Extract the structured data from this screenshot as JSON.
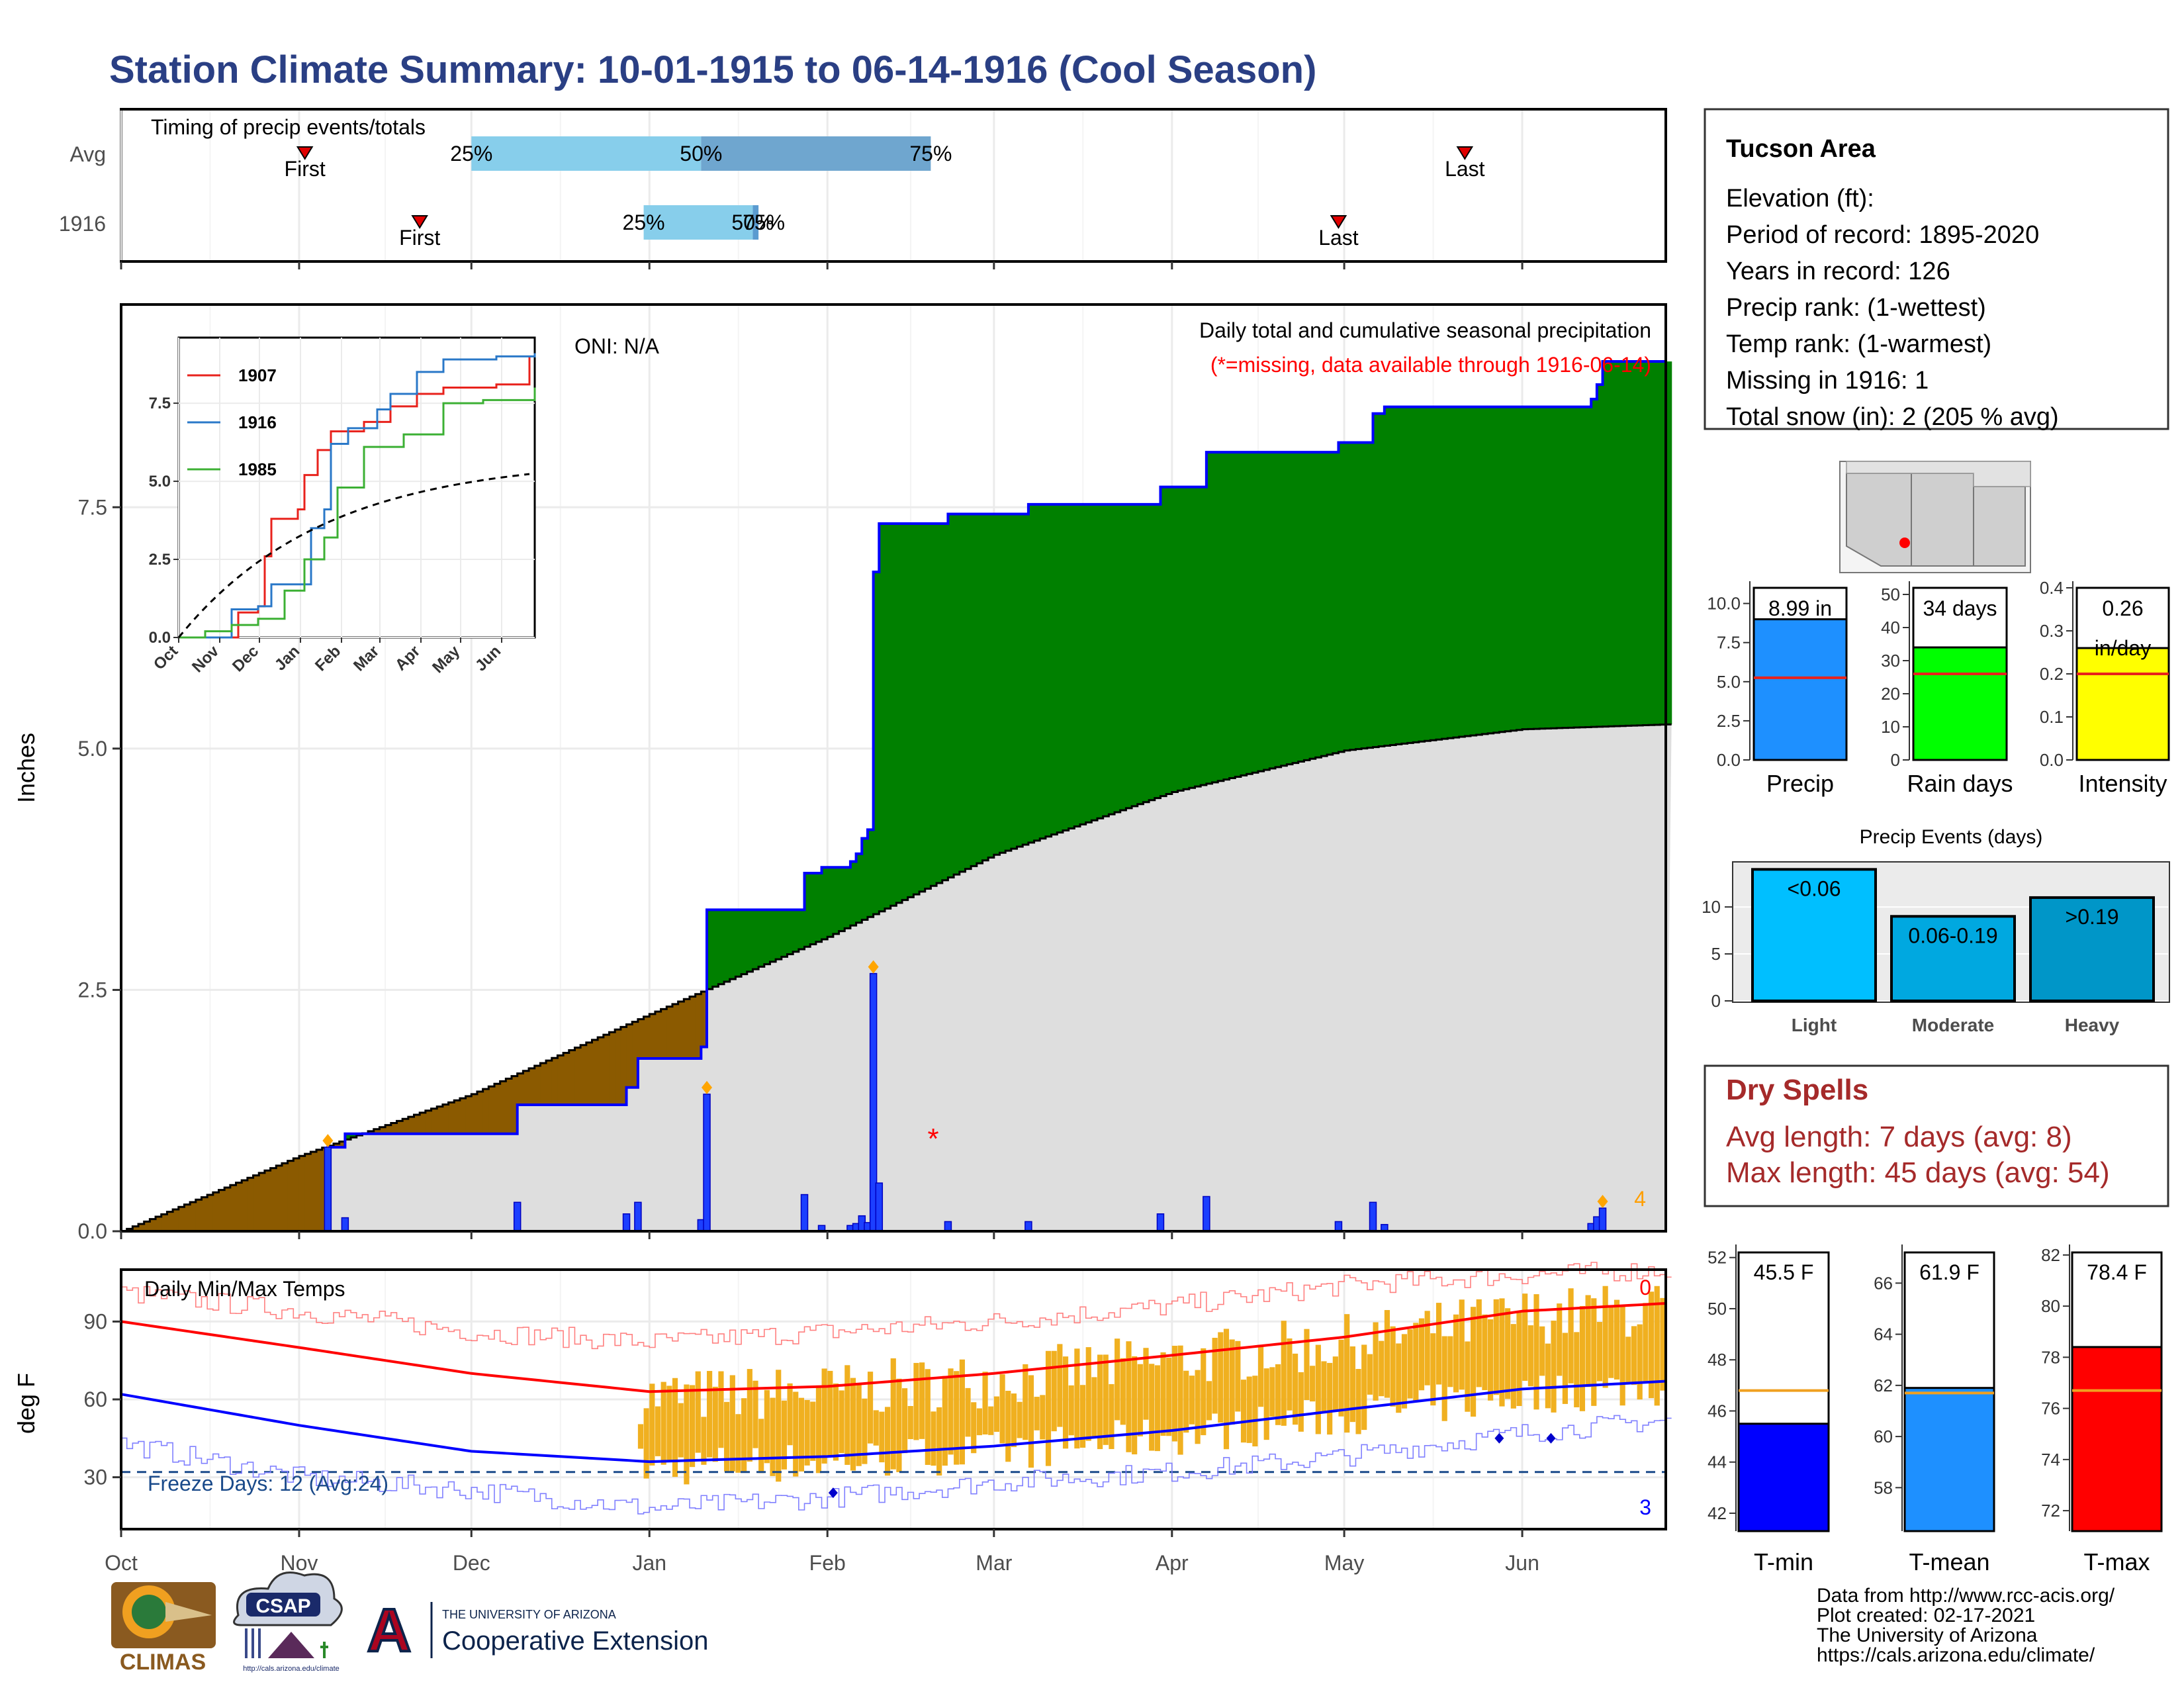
{
  "title": "Station Climate Summary: 10-01-1915 to 06-14-1916 (Cool Season)",
  "timing": {
    "label": "Timing of precip events/totals",
    "rows": [
      {
        "name": "Avg",
        "first": "1915-11-02",
        "p25": "1915-12-01",
        "p50": "1916-01-10",
        "p75": "1916-02-19",
        "last": "1916-05-22"
      },
      {
        "name": "1916",
        "first": "1915-11-22",
        "p25": "1915-12-31",
        "p50": "1916-01-19",
        "p75": "1916-01-20",
        "last": "1916-04-30"
      }
    ],
    "first_label": "First",
    "last_label": "Last",
    "pct_labels": [
      "25%",
      "50%",
      "75%"
    ],
    "row2_p75_label": "75%"
  },
  "months": [
    "Oct",
    "Nov",
    "Dec",
    "Jan",
    "Feb",
    "Mar",
    "Apr",
    "May",
    "Jun"
  ],
  "month_starts": [
    "1915-10-01",
    "1915-11-01",
    "1915-12-01",
    "1916-01-01",
    "1916-02-01",
    "1916-03-01",
    "1916-04-01",
    "1916-05-01",
    "1916-06-01"
  ],
  "precip": {
    "ylabel": "Inches",
    "y_ticks": [
      "0.0",
      "2.5",
      "5.0",
      "7.5"
    ],
    "ylim": [
      0,
      9.6
    ],
    "oni": "ONI: N/A",
    "header": "Daily total and cumulative seasonal precipitation",
    "missing_note": "(*=missing, data available through 1916-06-14)",
    "corner_count": "4",
    "colors": {
      "above": "#008000",
      "below": "#8b5a00",
      "normal": "#dedede",
      "cum_line": "#0000ff",
      "daily": "#1c3fff"
    }
  },
  "chart_data": [
    {
      "type": "area",
      "title": "Daily total and cumulative seasonal precipitation",
      "ylabel": "Inches",
      "ylim": [
        0,
        9.6
      ],
      "daily_events": [
        {
          "date": "1915-11-06",
          "value": 0.87,
          "marker": true
        },
        {
          "date": "1915-11-09",
          "value": 0.14
        },
        {
          "date": "1915-12-09",
          "value": 0.3
        },
        {
          "date": "1915-12-28",
          "value": 0.18
        },
        {
          "date": "1915-12-30",
          "value": 0.3
        },
        {
          "date": "1916-01-10",
          "value": 0.12
        },
        {
          "date": "1916-01-11",
          "value": 1.42,
          "marker": true
        },
        {
          "date": "1916-01-28",
          "value": 0.38
        },
        {
          "date": "1916-01-31",
          "value": 0.06
        },
        {
          "date": "1916-02-05",
          "value": 0.06
        },
        {
          "date": "1916-02-06",
          "value": 0.08
        },
        {
          "date": "1916-02-07",
          "value": 0.16
        },
        {
          "date": "1916-02-08",
          "value": 0.09
        },
        {
          "date": "1916-02-09",
          "value": 2.67,
          "marker": true
        },
        {
          "date": "1916-02-10",
          "value": 0.5
        },
        {
          "date": "1916-02-22",
          "value": 0.1
        },
        {
          "date": "1916-03-07",
          "value": 0.1
        },
        {
          "date": "1916-03-30",
          "value": 0.18
        },
        {
          "date": "1916-04-07",
          "value": 0.36
        },
        {
          "date": "1916-04-30",
          "value": 0.1
        },
        {
          "date": "1916-05-06",
          "value": 0.3
        },
        {
          "date": "1916-05-08",
          "value": 0.07
        },
        {
          "date": "1916-06-13",
          "value": 0.08
        },
        {
          "date": "1916-06-14",
          "value": 0.15
        },
        {
          "date": "1916-06-15",
          "value": 0.24,
          "marker": true
        }
      ],
      "missing_day": "1916-02-27",
      "normal_cumulative": [
        {
          "date": "1915-10-01",
          "value": 0.0
        },
        {
          "date": "1915-11-01",
          "value": 0.78
        },
        {
          "date": "1915-12-01",
          "value": 1.42
        },
        {
          "date": "1916-01-01",
          "value": 2.25
        },
        {
          "date": "1916-02-01",
          "value": 3.05
        },
        {
          "date": "1916-03-01",
          "value": 3.9
        },
        {
          "date": "1916-04-01",
          "value": 4.55
        },
        {
          "date": "1916-05-01",
          "value": 4.98
        },
        {
          "date": "1916-06-01",
          "value": 5.2
        },
        {
          "date": "1916-06-26",
          "value": 5.25
        }
      ]
    },
    {
      "type": "line",
      "title": "Daily Min/Max Temps",
      "ylabel": "deg F",
      "ylim": [
        10,
        110
      ],
      "y_ticks": [
        30,
        60,
        90
      ],
      "freeze_line": 32,
      "series": [
        {
          "name": "avg_max",
          "color": "#ff0000",
          "points": [
            [
              "1915-10-01",
              90
            ],
            [
              "1915-11-01",
              80
            ],
            [
              "1915-12-01",
              70
            ],
            [
              "1916-01-01",
              63
            ],
            [
              "1916-02-01",
              65
            ],
            [
              "1916-03-01",
              70
            ],
            [
              "1916-04-01",
              77
            ],
            [
              "1916-05-01",
              84
            ],
            [
              "1916-06-01",
              94
            ],
            [
              "1916-06-26",
              97
            ]
          ]
        },
        {
          "name": "avg_min",
          "color": "#0000ff",
          "points": [
            [
              "1915-10-01",
              62
            ],
            [
              "1915-11-01",
              50
            ],
            [
              "1915-12-01",
              40
            ],
            [
              "1916-01-01",
              36
            ],
            [
              "1916-02-01",
              38
            ],
            [
              "1916-03-01",
              42
            ],
            [
              "1916-04-01",
              48
            ],
            [
              "1916-05-01",
              56
            ],
            [
              "1916-06-01",
              64
            ],
            [
              "1916-06-26",
              67
            ]
          ]
        },
        {
          "name": "record_max",
          "color": "#ff8080",
          "points": [
            [
              "1915-10-01",
              101
            ],
            [
              "1915-11-01",
              94
            ],
            [
              "1915-12-01",
              86
            ],
            [
              "1916-01-01",
              82
            ],
            [
              "1916-02-01",
              86
            ],
            [
              "1916-03-01",
              90
            ],
            [
              "1916-04-01",
              96
            ],
            [
              "1916-05-01",
              104
            ],
            [
              "1916-06-01",
              108
            ],
            [
              "1916-06-26",
              110
            ]
          ]
        },
        {
          "name": "record_min",
          "color": "#8080ff",
          "points": [
            [
              "1915-10-01",
              43
            ],
            [
              "1915-11-01",
              30
            ],
            [
              "1915-12-01",
              25
            ],
            [
              "1916-01-01",
              18
            ],
            [
              "1916-02-01",
              22
            ],
            [
              "1916-03-01",
              28
            ],
            [
              "1916-04-01",
              32
            ],
            [
              "1916-05-01",
              38
            ],
            [
              "1916-06-01",
              47
            ],
            [
              "1916-06-26",
              52
            ]
          ]
        }
      ],
      "observed_start": "1915-12-30"
    }
  ],
  "temps": {
    "label": "Daily Min/Max Temps",
    "ylabel": "deg F",
    "y_ticks": [
      "30",
      "60",
      "90"
    ],
    "freeze_label": "Freeze Days: 12 (Avg:24)",
    "count_top": "0",
    "count_bottom": "3",
    "bar_color": "#f0b020"
  },
  "inset": {
    "y_ticks": [
      "0.0",
      "2.5",
      "5.0",
      "7.5"
    ],
    "months": [
      "Oct",
      "Nov",
      "Dec",
      "Jan",
      "Feb",
      "Mar",
      "Apr",
      "May",
      "Jun"
    ],
    "legend": [
      {
        "name": "1907",
        "color": "#e8221c"
      },
      {
        "name": "1916",
        "color": "#2a78c8"
      },
      {
        "name": "1985",
        "color": "#3cb034"
      }
    ]
  },
  "info": {
    "station": "Tucson Area",
    "lines": [
      "Elevation (ft):",
      "Period of record: 1895-2020",
      "Years in record: 126",
      "Precip rank:  (1-wettest)",
      "Temp rank:  (1-warmest)",
      "Missing in 1916: 1",
      "Total snow (in): 2 (205 % avg)"
    ]
  },
  "mini_bars": [
    {
      "label": "Precip",
      "value_label": "8.99 in",
      "value": 8.99,
      "avg": 5.25,
      "ylim": [
        0,
        11
      ],
      "ticks": [
        "0.0",
        "2.5",
        "5.0",
        "7.5",
        "10.0"
      ],
      "tick_values": [
        0,
        2.5,
        5,
        7.5,
        10
      ],
      "color": "#1e90ff"
    },
    {
      "label": "Rain days",
      "value_label": "34 days",
      "value": 34,
      "avg": 26,
      "ylim": [
        0,
        52
      ],
      "ticks": [
        "0",
        "10",
        "20",
        "30",
        "40",
        "50"
      ],
      "tick_values": [
        0,
        10,
        20,
        30,
        40,
        50
      ],
      "color": "#00ff00"
    },
    {
      "label": "Intensity",
      "value_label": "0.26",
      "value_label2": "in/day",
      "value": 0.26,
      "avg": 0.2,
      "ylim": [
        0,
        0.4
      ],
      "ticks": [
        "0.0",
        "0.1",
        "0.2",
        "0.3",
        "0.4"
      ],
      "tick_values": [
        0,
        0.1,
        0.2,
        0.3,
        0.4
      ],
      "color": "#ffff00"
    }
  ],
  "events": {
    "title": "Precip Events (days)",
    "ticks": [
      "0",
      "5",
      "10"
    ],
    "bars": [
      {
        "label": "Light",
        "range": "<0.06",
        "value": 14,
        "color": "#00bfff"
      },
      {
        "label": "Moderate",
        "range": "0.06-0.19",
        "value": 9,
        "color": "#00a8e0"
      },
      {
        "label": "Heavy",
        "range": ">0.19",
        "value": 11,
        "color": "#0096c8"
      }
    ]
  },
  "dry": {
    "title": "Dry Spells",
    "avg": "Avg length: 7 days (avg: 8)",
    "max": "Max length: 45 days (avg: 54)"
  },
  "temp_bars": [
    {
      "label": "T-min",
      "value_label": "45.5 F",
      "value": 45.5,
      "avg": 46.8,
      "ylim": [
        41.3,
        52.2
      ],
      "ticks": [
        "42",
        "44",
        "46",
        "48",
        "50",
        "52"
      ],
      "tick_values": [
        42,
        44,
        46,
        48,
        50,
        52
      ],
      "color": "#0000ff"
    },
    {
      "label": "T-mean",
      "value_label": "61.9 F",
      "value": 61.9,
      "avg": 61.7,
      "ylim": [
        56.3,
        67.2
      ],
      "ticks": [
        "58",
        "60",
        "62",
        "64",
        "66"
      ],
      "tick_values": [
        58,
        60,
        62,
        64,
        66
      ],
      "color": "#1e90ff"
    },
    {
      "label": "T-max",
      "value_label": "78.4 F",
      "value": 78.4,
      "avg": 76.7,
      "ylim": [
        71.2,
        82.1
      ],
      "ticks": [
        "72",
        "74",
        "76",
        "78",
        "80",
        "82"
      ],
      "tick_values": [
        72,
        74,
        76,
        78,
        80,
        82
      ],
      "color": "#ff0000"
    }
  ],
  "footer": {
    "lines": [
      "Data from http://www.rcc-acis.org/",
      "Plot created: 02-17-2021",
      "The University of Arizona",
      "https://cals.arizona.edu/climate/"
    ],
    "climas": "CLIMAS",
    "csap": "CSAP",
    "csap_url": "http://cals.arizona.edu/climate",
    "ua_small": "THE UNIVERSITY OF ARIZONA",
    "ua_big": "Cooperative Extension",
    "ua_letter": "A"
  }
}
